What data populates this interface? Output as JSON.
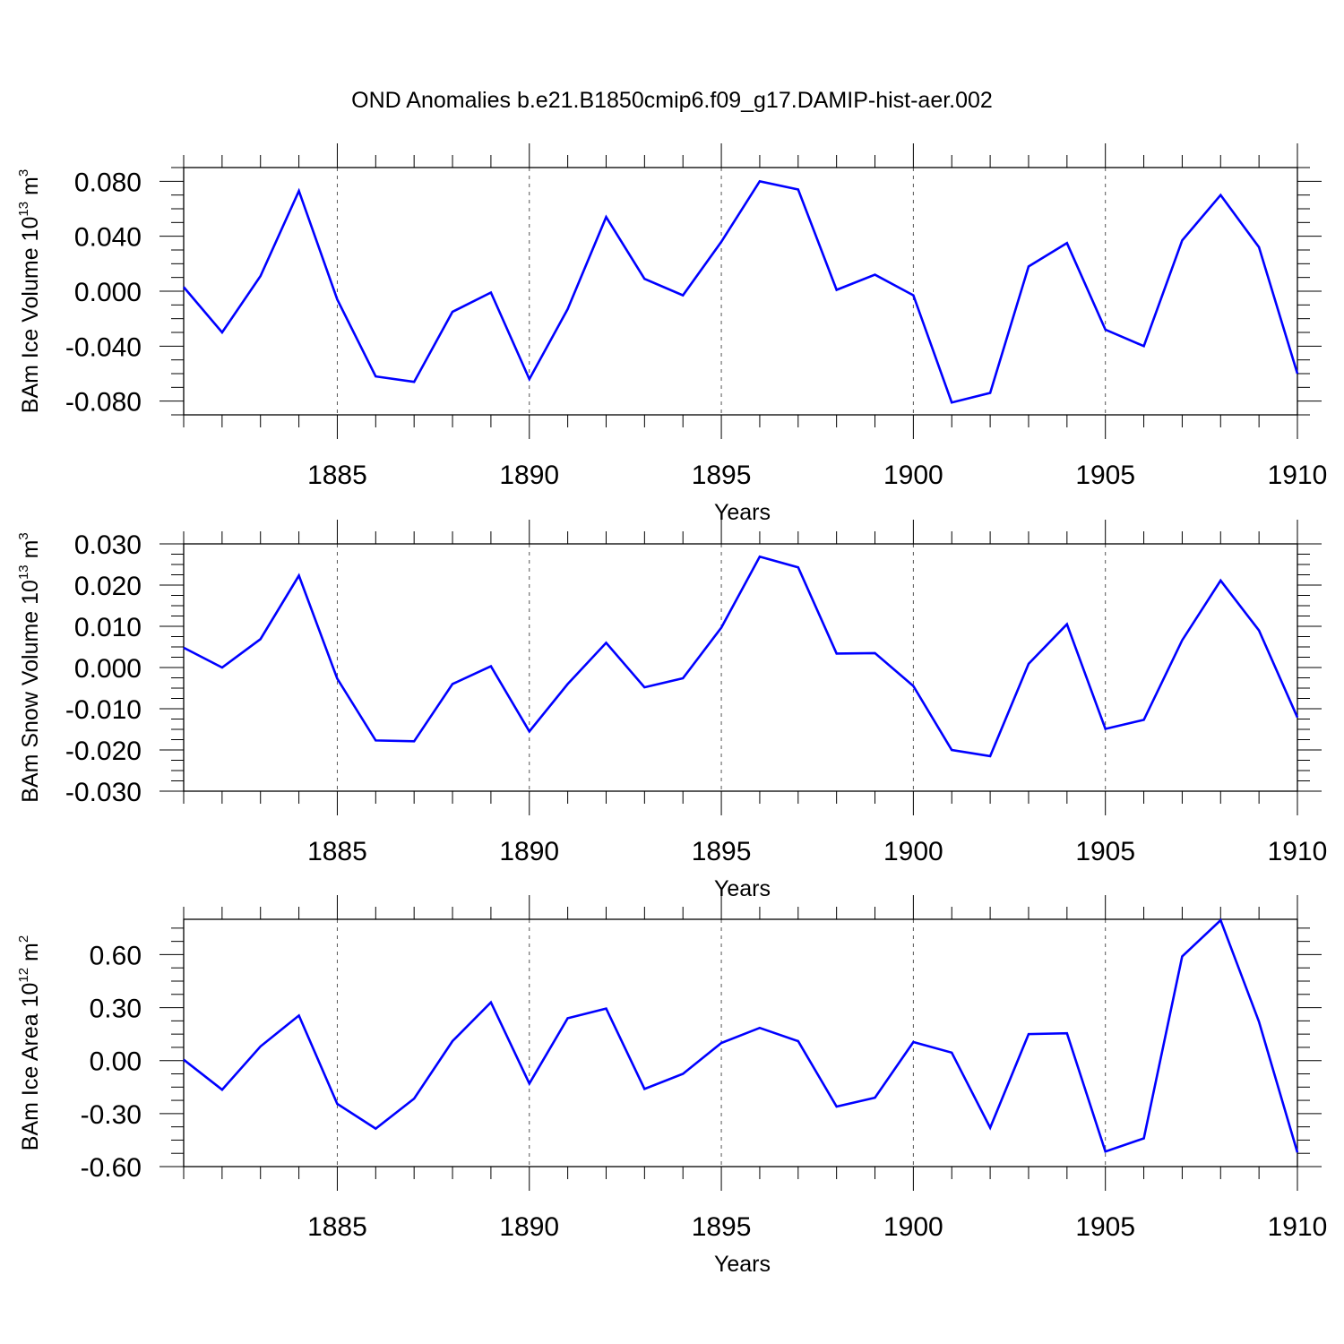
{
  "title": "OND Anomalies b.e21.B1850cmip6.f09_g17.DAMIP-hist-aer.002",
  "colors": {
    "line": "#0000ff",
    "axis": "#000000",
    "grid": "#555555"
  },
  "chart_data": [
    {
      "type": "line",
      "ylabel": "BAm Ice Volume 10",
      "ylabel_exp": "13",
      "ylabel_unit": " m",
      "ylabel_unit_exp": "3",
      "xlabel": "Years",
      "xlim": [
        1881,
        1910
      ],
      "ylim": [
        -0.09,
        0.09
      ],
      "xticks": [
        "1885",
        "1890",
        "1895",
        "1900",
        "1905",
        "1910"
      ],
      "yticks": [
        "0.080",
        "0.040",
        "0.000",
        "-0.040",
        "-0.080"
      ],
      "ytick_values": [
        0.08,
        0.04,
        0.0,
        -0.04,
        -0.08
      ],
      "x": [
        1881,
        1882,
        1883,
        1884,
        1885,
        1886,
        1887,
        1888,
        1889,
        1890,
        1891,
        1892,
        1893,
        1894,
        1895,
        1896,
        1897,
        1898,
        1899,
        1900,
        1901,
        1902,
        1903,
        1904,
        1905,
        1906,
        1907,
        1908,
        1909,
        1910
      ],
      "series": [
        {
          "values": [
            0.003,
            -0.03,
            0.011,
            0.073,
            -0.006,
            -0.062,
            -0.066,
            -0.015,
            -0.001,
            -0.064,
            -0.013,
            0.054,
            0.009,
            -0.003,
            0.036,
            0.08,
            0.074,
            0.001,
            0.012,
            -0.003,
            -0.081,
            -0.074,
            0.018,
            0.035,
            -0.028,
            -0.04,
            0.037,
            0.07,
            0.032,
            -0.06
          ]
        }
      ],
      "grid_x": "dashed at major ticks"
    },
    {
      "type": "line",
      "ylabel": "BAm Snow Volume 10",
      "ylabel_exp": "13",
      "ylabel_unit": " m",
      "ylabel_unit_exp": "3",
      "xlabel": "Years",
      "xlim": [
        1881,
        1910
      ],
      "ylim": [
        -0.03,
        0.03
      ],
      "xticks": [
        "1885",
        "1890",
        "1895",
        "1900",
        "1905",
        "1910"
      ],
      "yticks": [
        "0.030",
        "0.020",
        "0.010",
        "0.000",
        "-0.010",
        "-0.020",
        "-0.030"
      ],
      "ytick_values": [
        0.03,
        0.02,
        0.01,
        0.0,
        -0.01,
        -0.02,
        -0.03
      ],
      "x": [
        1881,
        1882,
        1883,
        1884,
        1885,
        1886,
        1887,
        1888,
        1889,
        1890,
        1891,
        1892,
        1893,
        1894,
        1895,
        1896,
        1897,
        1898,
        1899,
        1900,
        1901,
        1902,
        1903,
        1904,
        1905,
        1906,
        1907,
        1908,
        1909,
        1910
      ],
      "series": [
        {
          "values": [
            0.0048,
            0.0,
            0.0069,
            0.0223,
            -0.0027,
            -0.0177,
            -0.0179,
            -0.004,
            0.0003,
            -0.0155,
            -0.004,
            0.006,
            -0.0048,
            -0.0026,
            0.0097,
            0.0269,
            0.0243,
            0.0034,
            0.0035,
            -0.0045,
            -0.02,
            -0.0215,
            0.0009,
            0.0105,
            -0.0149,
            -0.0127,
            0.0066,
            0.0211,
            0.009,
            -0.0121
          ]
        }
      ],
      "grid_x": "dashed at major ticks"
    },
    {
      "type": "line",
      "ylabel": "BAm Ice Area 10",
      "ylabel_exp": "12",
      "ylabel_unit": " m",
      "ylabel_unit_exp": "2",
      "xlabel": "Years",
      "xlim": [
        1881,
        1910
      ],
      "ylim": [
        -0.6,
        0.8
      ],
      "xticks": [
        "1885",
        "1890",
        "1895",
        "1900",
        "1905",
        "1910"
      ],
      "yticks": [
        "0.60",
        "0.30",
        "0.00",
        "-0.30",
        "-0.60"
      ],
      "ytick_values": [
        0.6,
        0.3,
        0.0,
        -0.3,
        -0.6
      ],
      "x": [
        1881,
        1882,
        1883,
        1884,
        1885,
        1886,
        1887,
        1888,
        1889,
        1890,
        1891,
        1892,
        1893,
        1894,
        1895,
        1896,
        1897,
        1898,
        1899,
        1900,
        1901,
        1902,
        1903,
        1904,
        1905,
        1906,
        1907,
        1908,
        1909,
        1910
      ],
      "series": [
        {
          "values": [
            0.005,
            -0.165,
            0.08,
            0.255,
            -0.245,
            -0.385,
            -0.215,
            0.11,
            0.33,
            -0.13,
            0.24,
            0.295,
            -0.16,
            -0.075,
            0.1,
            0.185,
            0.11,
            -0.26,
            -0.21,
            0.105,
            0.045,
            -0.38,
            0.15,
            0.155,
            -0.515,
            -0.44,
            0.59,
            0.795,
            0.22,
            -0.52
          ]
        }
      ],
      "grid_x": "dashed at major ticks"
    }
  ]
}
